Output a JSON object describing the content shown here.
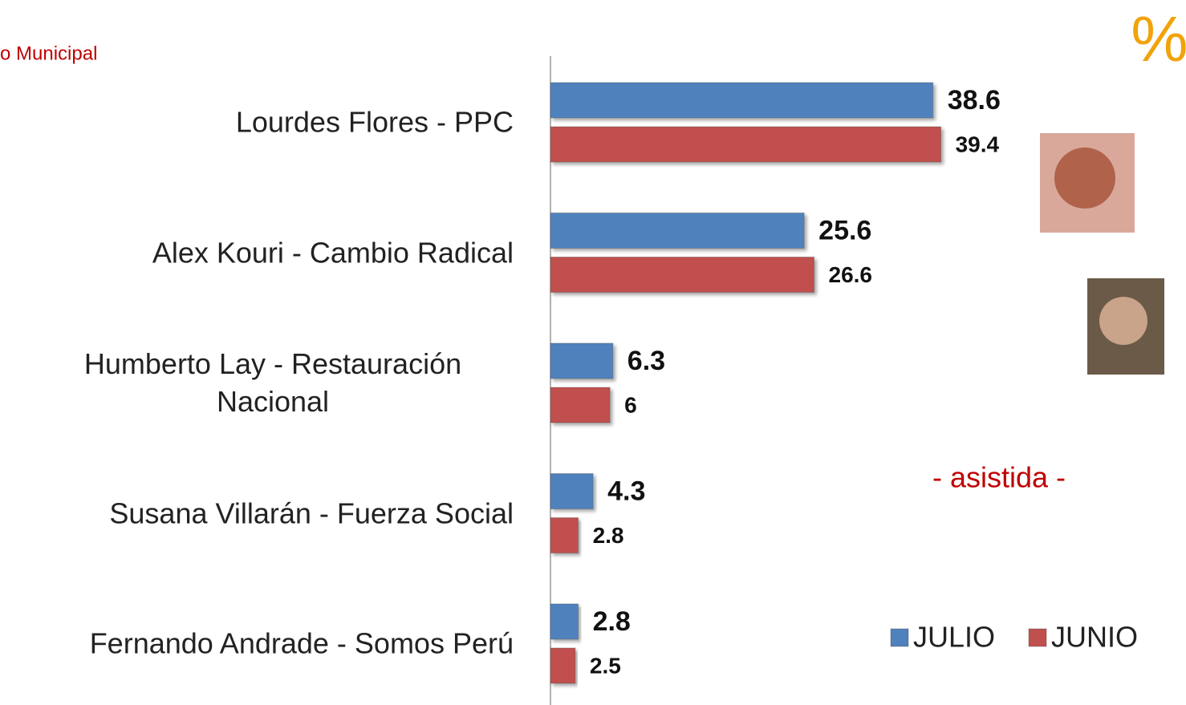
{
  "chart_data": {
    "type": "bar",
    "title": "o Municipal",
    "unit_label": "%",
    "annotation": "- asistida -",
    "categories": [
      "Lourdes Flores - PPC",
      "Alex Kouri - Cambio Radical",
      "Humberto Lay - Restauración Nacional",
      "Susana Villarán - Fuerza Social",
      "Fernando Andrade - Somos Perú"
    ],
    "series": [
      {
        "name": "JULIO",
        "color": "#4f81bd",
        "values": [
          38.6,
          25.6,
          6.3,
          4.3,
          2.8
        ]
      },
      {
        "name": "JUNIO",
        "color": "#c0504d",
        "values": [
          39.4,
          26.6,
          6,
          2.8,
          2.5
        ]
      }
    ],
    "xlim": [
      0,
      40
    ],
    "legend": "bottom-right"
  }
}
